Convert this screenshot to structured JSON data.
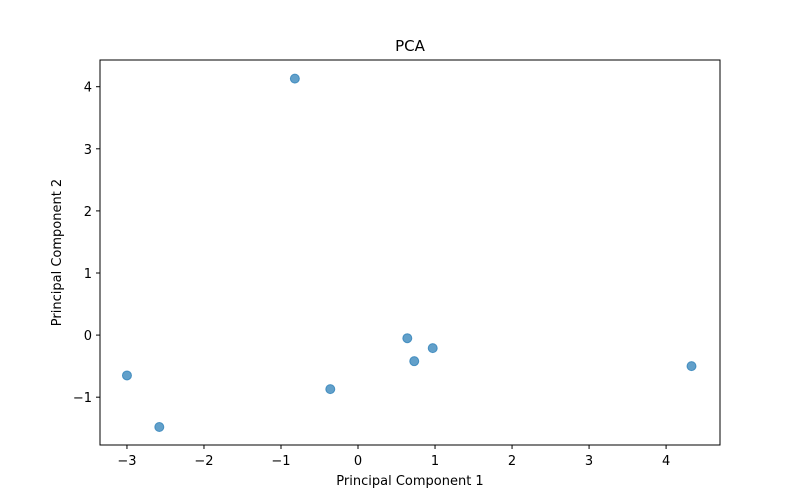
{
  "chart_data": {
    "type": "scatter",
    "title": "PCA",
    "xlabel": "Principal Component 1",
    "ylabel": "Principal Component 2",
    "xlim": [
      -3.35,
      4.7
    ],
    "ylim": [
      -1.77,
      4.43
    ],
    "xticks": [
      -3,
      -2,
      -1,
      0,
      1,
      2,
      3,
      4
    ],
    "yticks": [
      -1,
      0,
      1,
      2,
      3,
      4
    ],
    "grid": false,
    "point_color": "#1f77b4",
    "point_alpha": 0.7,
    "points": [
      {
        "x": -0.82,
        "y": 4.13
      },
      {
        "x": -3.0,
        "y": -0.65
      },
      {
        "x": -2.58,
        "y": -1.48
      },
      {
        "x": -0.36,
        "y": -0.87
      },
      {
        "x": 0.64,
        "y": -0.05
      },
      {
        "x": 0.73,
        "y": -0.42
      },
      {
        "x": 0.97,
        "y": -0.21
      },
      {
        "x": 4.33,
        "y": -0.5
      }
    ]
  }
}
